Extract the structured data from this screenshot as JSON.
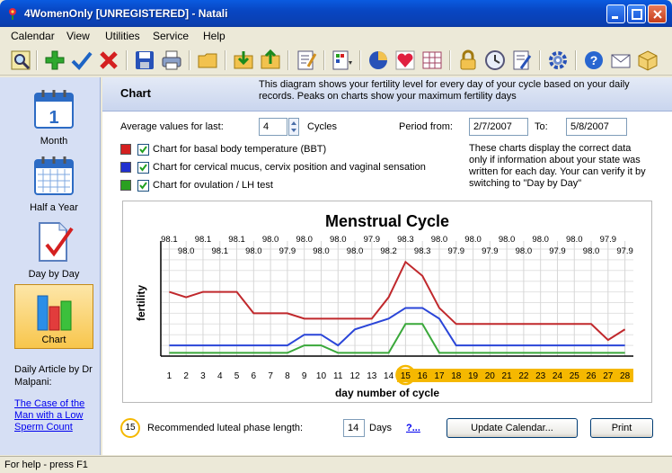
{
  "window": {
    "title": "4WomenOnly [UNREGISTERED] - Natali"
  },
  "menu": [
    "Calendar",
    "View",
    "Utilities",
    "Service",
    "Help"
  ],
  "toolbar": {
    "icons": [
      "preview-icon",
      "add-icon",
      "check-icon",
      "delete-icon",
      "save-icon",
      "print-icon",
      "open-folder-icon",
      "import-icon",
      "export-icon",
      "notes-icon",
      "window-icon",
      "pie-chart-icon",
      "heart-icon",
      "table-icon",
      "lock-icon",
      "clock-icon",
      "edit-icon",
      "settings-icon",
      "help-icon",
      "mail-icon",
      "package-icon"
    ]
  },
  "sidebar": {
    "items": [
      {
        "label": "Month",
        "icon": "calendar-month-icon"
      },
      {
        "label": "Half a Year",
        "icon": "calendar-grid-icon"
      },
      {
        "label": "Day by Day",
        "icon": "document-check-icon"
      },
      {
        "label": "Chart",
        "icon": "bar-chart-icon",
        "active": true
      }
    ],
    "article_heading": "Daily Article by Dr Malpani:",
    "article_link": "The Case of the Man with a Low Sperm Count"
  },
  "header": {
    "title": "Chart",
    "description": "This diagram shows your fertility level for every day of your cycle based on your daily records. Peaks on charts show your maximum fertility days"
  },
  "controls": {
    "average_label": "Average values for last:",
    "cycles_value": "4",
    "cycles_label": "Cycles",
    "period_label": "Period from:",
    "period_from": "2/7/2007",
    "to_label": "To:",
    "period_to": "5/8/2007",
    "note": "These charts display the correct data only if information about your state was written for each day. Your can verify it by switching to \"Day by Day\""
  },
  "legend_items": [
    {
      "label": "Chart for basal body temperature (BBT)",
      "color": "#d42020",
      "checked": true
    },
    {
      "label": "Chart for cervical mucus, cervix position and vaginal sensation",
      "color": "#2030d0",
      "checked": true
    },
    {
      "label": "Chart for ovulation / LH test",
      "color": "#2aa020",
      "checked": true
    }
  ],
  "chart_data": {
    "type": "line",
    "title": "Menstrual Cycle",
    "xlabel": "day number of cycle",
    "ylabel": "fertility",
    "grid": true,
    "x": [
      1,
      2,
      3,
      4,
      5,
      6,
      7,
      8,
      9,
      10,
      11,
      12,
      13,
      14,
      15,
      16,
      17,
      18,
      19,
      20,
      21,
      22,
      23,
      24,
      25,
      26,
      27,
      28
    ],
    "bbt_labels": [
      "98.1",
      "98.0",
      "98.1",
      "98.1",
      "98.1",
      "98.0",
      "98.0",
      "97.9",
      "98.0",
      "98.0",
      "98.0",
      "98.0",
      "97.9",
      "98.2",
      "98.3",
      "98.3",
      "98.0",
      "97.9",
      "98.0",
      "97.9",
      "98.0",
      "98.0",
      "98.0",
      "97.9",
      "98.0",
      "98.0",
      "97.9",
      "97.9"
    ],
    "highlight_day": 15,
    "highlight_from": 15,
    "highlight_color": "#f5b800",
    "series": [
      {
        "values": [
          6,
          5.5,
          6,
          6,
          6,
          4,
          4,
          4,
          3.5,
          3.5,
          3.5,
          3.5,
          3.5,
          5.5,
          8.8,
          7.5,
          4.5,
          3,
          3,
          3,
          3,
          3,
          3,
          3,
          3,
          3,
          1.5,
          2.5
        ],
        "color": "#c0282c"
      },
      {
        "values": [
          1,
          1,
          1,
          1,
          1,
          1,
          1,
          1,
          2,
          2,
          1,
          2.5,
          3,
          3.5,
          4.5,
          4.5,
          3.5,
          1,
          1,
          1,
          1,
          1,
          1,
          1,
          1,
          1,
          1,
          1
        ],
        "color": "#2a45d8"
      },
      {
        "values": [
          0.3,
          0.3,
          0.3,
          0.3,
          0.3,
          0.3,
          0.3,
          0.3,
          1,
          1,
          0.3,
          0.3,
          0.3,
          0.3,
          3,
          3,
          0.3,
          0.3,
          0.3,
          0.3,
          0.3,
          0.3,
          0.3,
          0.3,
          0.3,
          0.3,
          0.3,
          0.3
        ],
        "color": "#3aa83a"
      }
    ],
    "ylim": [
      0,
      10
    ]
  },
  "footer": {
    "badge": "15",
    "luteal_label": "Recommended luteal phase length:",
    "luteal_value": "14",
    "days_label": "Days",
    "help_link": "?...",
    "update_button": "Update Calendar...",
    "print_button": "Print"
  },
  "status": "For help - press F1"
}
